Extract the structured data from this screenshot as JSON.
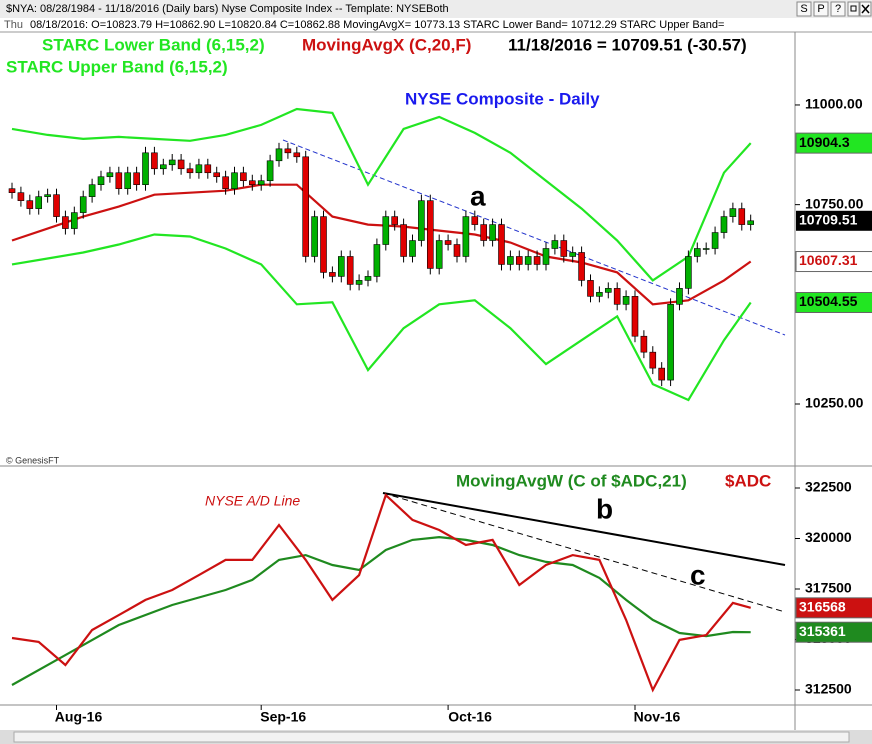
{
  "window": {
    "title": "$NYA: 08/28/1984 - 11/18/2016 (Daily bars)   Nyse Composite Index  --  Template: NYSEBoth",
    "buttons": [
      "S",
      "P",
      "?"
    ],
    "info_day": "Thu",
    "info": "08/18/2016: O=10823.79 H=10862.90 L=10820.84 C=10862.88 MovingAvgX= 10773.13 STARC Lower Band= 10712.29 STARC Upper Band="
  },
  "chart_data": [
    {
      "type": "candlestick",
      "title": "NYSE Composite - Daily",
      "credit": "© GenesisFT",
      "last_note": "11/18/2016 = 10709.51 (-30.57)",
      "annotations": [
        "a"
      ],
      "up_color": "#00b000",
      "down_color": "#e00000",
      "xlim": [
        -1.35,
        87.98
      ],
      "ylim": [
        10097,
        11183
      ],
      "yticks": [
        {
          "value": 11000,
          "label": "11000.00"
        },
        {
          "value": 10750,
          "label": "10750.00"
        },
        {
          "value": 10250,
          "label": "10250.00"
        }
      ],
      "open": [
        10790,
        10780,
        10760,
        10740,
        10770,
        10775,
        10720,
        10690,
        10730,
        10770,
        10800,
        10820,
        10830,
        10790,
        10830,
        10800,
        10880,
        10840,
        10850,
        10862,
        10840,
        10830,
        10850,
        10830,
        10820,
        10790,
        10830,
        10810,
        10800,
        10810,
        10860,
        10890,
        10880,
        10870,
        10620,
        10720,
        10580,
        10570,
        10620,
        10550,
        10560,
        10570,
        10650,
        10720,
        10700,
        10620,
        10660,
        10760,
        10590,
        10660,
        10650,
        10620,
        10720,
        10700,
        10660,
        10700,
        10600,
        10620,
        10600,
        10620,
        10600,
        10640,
        10660,
        10620,
        10630,
        10560,
        10520,
        10530,
        10540,
        10500,
        10520,
        10420,
        10380,
        10340,
        10310,
        10500,
        10540,
        10620,
        10640,
        10640,
        10680,
        10720,
        10740,
        10700
      ],
      "high": [
        10805,
        10795,
        10775,
        10785,
        10790,
        10790,
        10735,
        10745,
        10785,
        10815,
        10835,
        10845,
        10845,
        10845,
        10845,
        10895,
        10895,
        10865,
        10877,
        10877,
        10855,
        10865,
        10865,
        10845,
        10835,
        10845,
        10845,
        10825,
        10825,
        10875,
        10905,
        10905,
        10895,
        10885,
        10735,
        10735,
        10595,
        10635,
        10635,
        10575,
        10585,
        10665,
        10735,
        10735,
        10715,
        10675,
        10775,
        10775,
        10675,
        10675,
        10665,
        10735,
        10735,
        10715,
        10715,
        10715,
        10635,
        10635,
        10635,
        10635,
        10655,
        10675,
        10675,
        10645,
        10645,
        10575,
        10545,
        10555,
        10555,
        10535,
        10535,
        10435,
        10395,
        10355,
        10515,
        10555,
        10635,
        10655,
        10655,
        10695,
        10735,
        10755,
        10755,
        10725
      ],
      "low": [
        10765,
        10745,
        10725,
        10725,
        10755,
        10705,
        10675,
        10675,
        10715,
        10755,
        10785,
        10805,
        10775,
        10775,
        10785,
        10785,
        10825,
        10825,
        10835,
        10825,
        10815,
        10815,
        10815,
        10805,
        10775,
        10775,
        10795,
        10785,
        10785,
        10795,
        10845,
        10865,
        10855,
        10605,
        10605,
        10565,
        10555,
        10555,
        10535,
        10535,
        10545,
        10555,
        10635,
        10685,
        10605,
        10605,
        10645,
        10575,
        10575,
        10635,
        10605,
        10605,
        10685,
        10645,
        10645,
        10585,
        10585,
        10585,
        10585,
        10585,
        10585,
        10625,
        10605,
        10605,
        10545,
        10505,
        10505,
        10515,
        10485,
        10485,
        10405,
        10365,
        10325,
        10295,
        10295,
        10485,
        10525,
        10605,
        10625,
        10625,
        10665,
        10705,
        10685,
        10685
      ],
      "close": [
        10780,
        10760,
        10740,
        10770,
        10775,
        10720,
        10690,
        10730,
        10770,
        10800,
        10820,
        10830,
        10790,
        10830,
        10800,
        10880,
        10840,
        10850,
        10862,
        10840,
        10830,
        10850,
        10830,
        10820,
        10790,
        10830,
        10810,
        10800,
        10810,
        10860,
        10890,
        10880,
        10870,
        10620,
        10720,
        10580,
        10570,
        10620,
        10550,
        10560,
        10570,
        10650,
        10720,
        10700,
        10620,
        10660,
        10760,
        10590,
        10660,
        10650,
        10620,
        10720,
        10700,
        10660,
        10700,
        10600,
        10620,
        10600,
        10620,
        10600,
        10640,
        10660,
        10620,
        10630,
        10560,
        10520,
        10530,
        10540,
        10500,
        10520,
        10420,
        10380,
        10340,
        10310,
        10500,
        10540,
        10620,
        10640,
        10640,
        10680,
        10720,
        10740,
        10700,
        10709.51
      ],
      "series": [
        {
          "name": "STARC Upper Band (6,15,2)",
          "color": "#22e622",
          "tag_color": "#22e622",
          "tag_text_color": "#000000",
          "x": [
            0,
            4,
            8,
            12,
            16,
            20,
            24,
            28,
            32,
            36,
            40,
            44,
            48,
            52,
            56,
            60,
            64,
            68,
            72,
            76,
            80,
            83
          ],
          "values": [
            10940,
            10925,
            10915,
            10920,
            10915,
            10910,
            10925,
            10950,
            10990,
            10980,
            10800,
            10940,
            10970,
            10930,
            10880,
            10810,
            10740,
            10660,
            10560,
            10620,
            10830,
            10904.3
          ]
        },
        {
          "name": "MovingAvgX (C,20,F)",
          "color": "#cc1111",
          "tag_color": "#ffffff",
          "tag_text_color": "#cc1111",
          "x": [
            0,
            4,
            8,
            12,
            16,
            20,
            24,
            28,
            32,
            36,
            40,
            44,
            48,
            52,
            56,
            60,
            64,
            68,
            72,
            76,
            80,
            83
          ],
          "values": [
            10660,
            10690,
            10720,
            10745,
            10775,
            10780,
            10785,
            10800,
            10800,
            10720,
            10700,
            10695,
            10685,
            10675,
            10655,
            10620,
            10605,
            10580,
            10500,
            10510,
            10560,
            10607.31
          ]
        },
        {
          "name": "STARC Lower Band (6,15,2)",
          "color": "#22e622",
          "tag_color": "#22e622",
          "tag_text_color": "#000000",
          "x": [
            0,
            4,
            8,
            12,
            16,
            20,
            24,
            28,
            32,
            36,
            40,
            44,
            48,
            52,
            56,
            60,
            64,
            68,
            72,
            76,
            80,
            83
          ],
          "values": [
            10600,
            10615,
            10630,
            10650,
            10675,
            10670,
            10640,
            10600,
            10500,
            10505,
            10335,
            10440,
            10500,
            10510,
            10440,
            10350,
            10410,
            10470,
            10300,
            10260,
            10410,
            10504.55
          ]
        }
      ]
    },
    {
      "type": "line",
      "title": "NYSE A/D Line",
      "annotations": [
        "b",
        "c"
      ],
      "xlim": [
        -1.35,
        87.98
      ],
      "ylim": [
        311758,
        323540
      ],
      "yticks": [
        322500,
        320000,
        317500,
        315000,
        312500
      ],
      "xticks": [
        {
          "value": 5,
          "label": "Aug-16"
        },
        {
          "value": 28,
          "label": "Sep-16"
        },
        {
          "value": 49,
          "label": "Oct-16"
        },
        {
          "value": 70,
          "label": "Nov-16"
        }
      ],
      "series": [
        {
          "name": "MovingAvgW (C of $ADC,21)",
          "color": "#1f8a1f",
          "tag_color": "#1f8a1f",
          "tag_text_color": "#ffffff",
          "x": [
            0,
            6,
            12,
            18,
            24,
            27,
            30,
            33,
            36,
            39,
            42,
            45,
            48,
            51,
            54,
            57,
            60,
            63,
            66,
            69,
            72,
            75,
            78,
            81,
            83
          ],
          "values": [
            312750,
            314230,
            315720,
            316710,
            317450,
            317950,
            318940,
            319180,
            318690,
            318440,
            319430,
            319930,
            320070,
            319930,
            319680,
            319180,
            318840,
            318690,
            318050,
            316960,
            315970,
            315320,
            315170,
            315370,
            315361
          ]
        },
        {
          "name": "$ADC",
          "color": "#cc1111",
          "tag_color": "#cc1111",
          "tag_text_color": "#ffffff",
          "x": [
            0,
            3,
            6,
            9,
            12,
            15,
            18,
            21,
            24,
            27,
            30,
            33,
            36,
            39,
            42,
            45,
            48,
            51,
            54,
            57,
            60,
            63,
            66,
            69,
            72,
            75,
            78,
            81,
            83
          ],
          "values": [
            315075,
            314880,
            313740,
            315470,
            316210,
            316960,
            317450,
            318190,
            318940,
            318940,
            320670,
            318940,
            316960,
            318190,
            322150,
            320920,
            320420,
            319680,
            319930,
            317700,
            318690,
            319180,
            318940,
            315970,
            312500,
            314980,
            315220,
            316810,
            316568
          ]
        }
      ]
    }
  ]
}
